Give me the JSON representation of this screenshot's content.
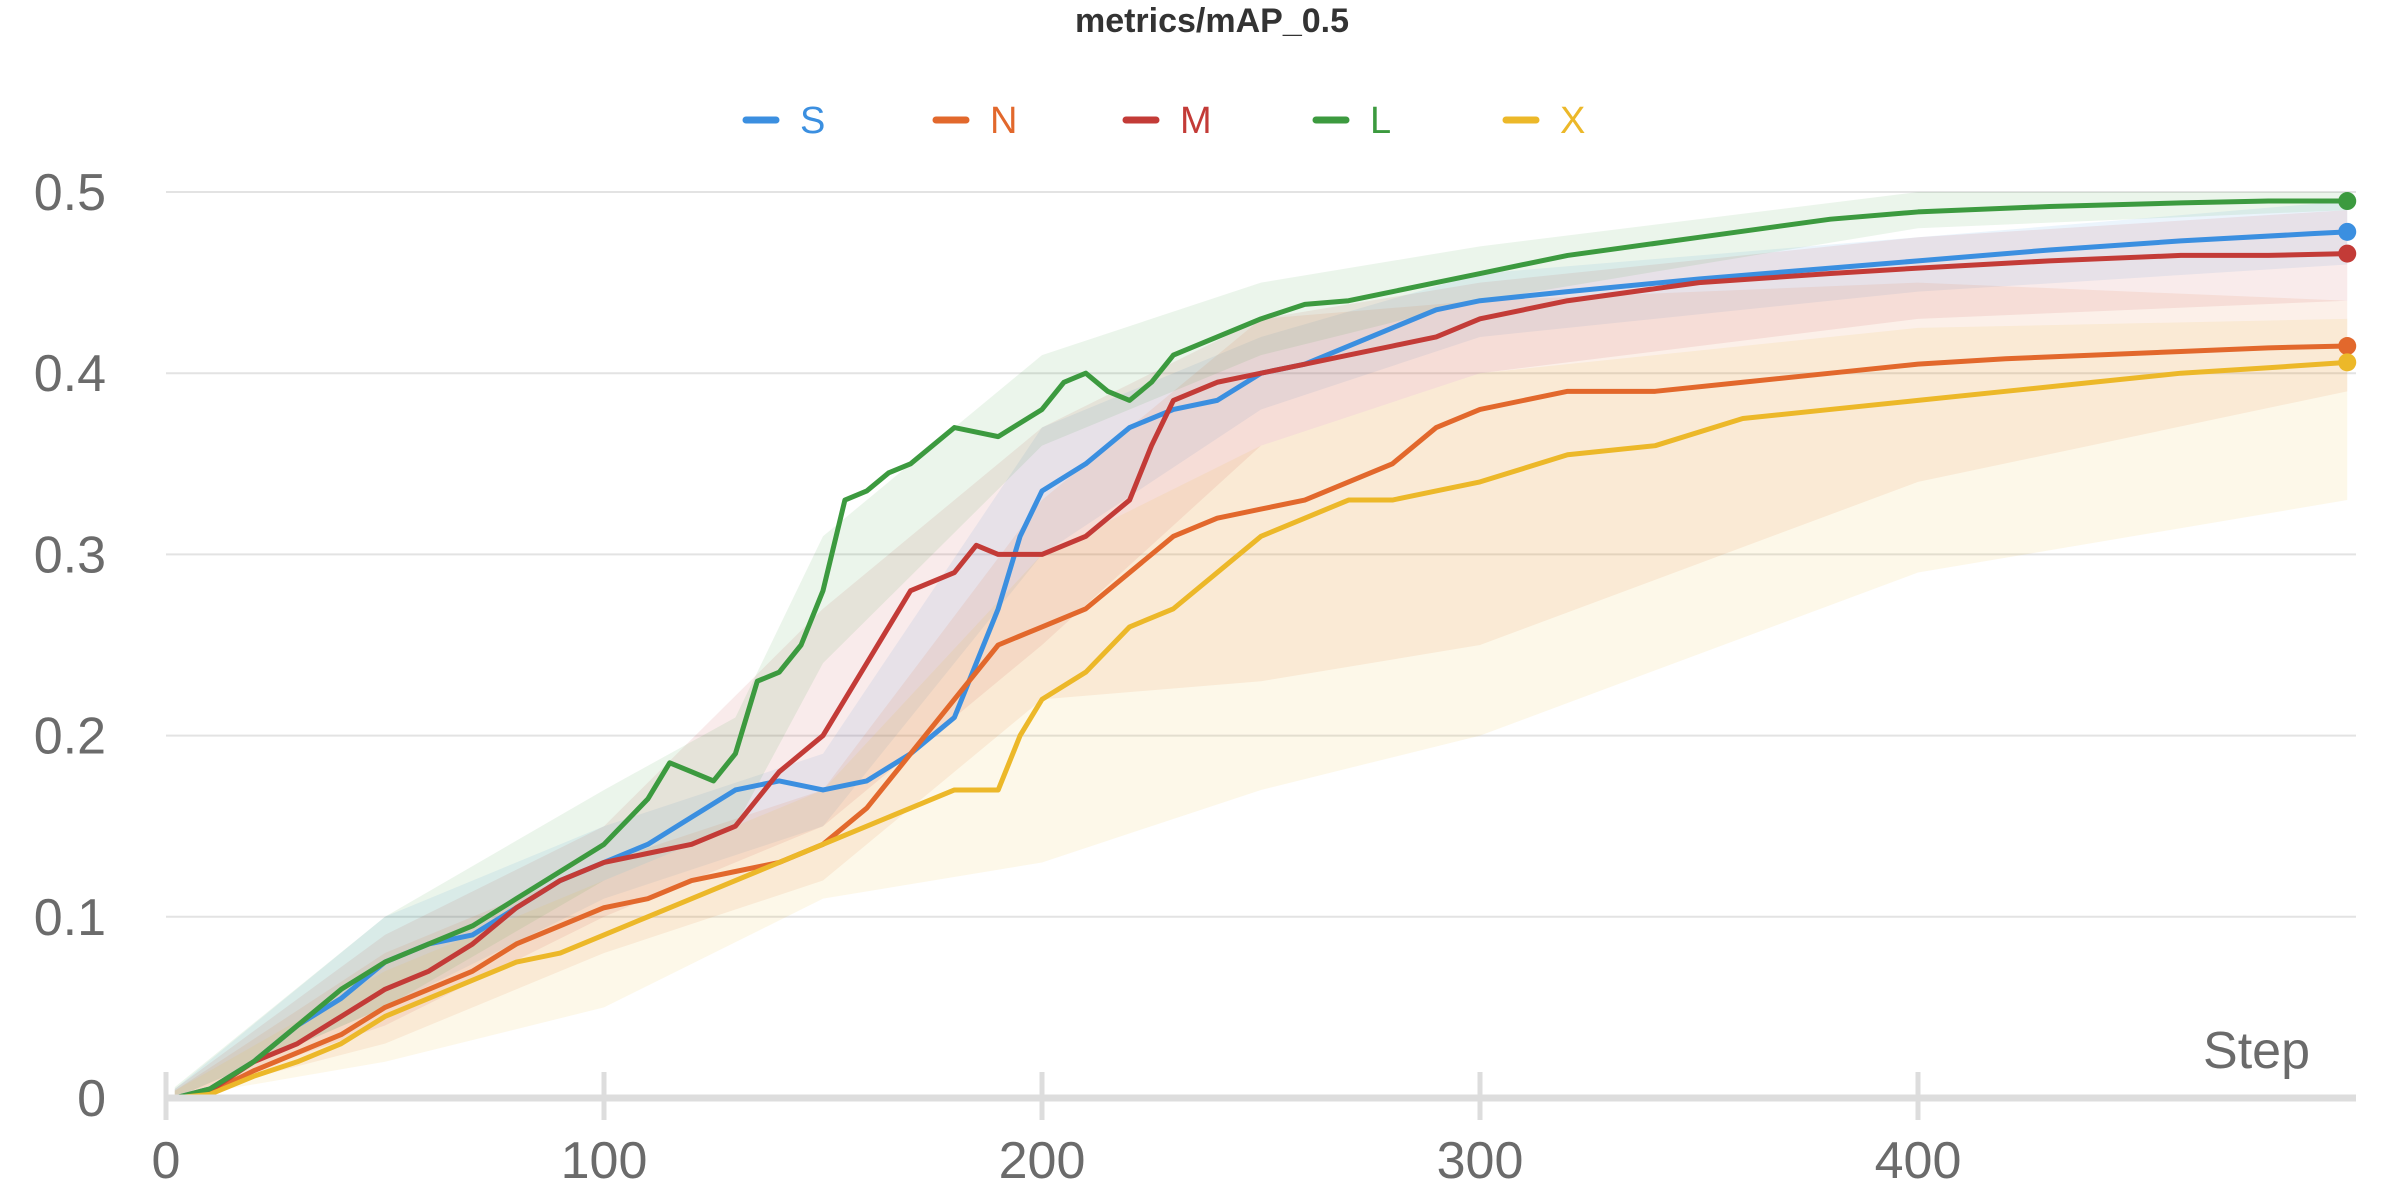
{
  "chart_data": {
    "type": "line",
    "title": "metrics/mAP_0.5",
    "xlabel": "Step",
    "ylabel": "",
    "xlim": [
      0,
      500
    ],
    "ylim": [
      0,
      0.5
    ],
    "x_ticks": [
      "0",
      "100",
      "200",
      "300",
      "400"
    ],
    "y_ticks": [
      "0",
      "0.1",
      "0.2",
      "0.3",
      "0.4",
      "0.5"
    ],
    "grid": true,
    "legend_position": "top-center",
    "series": [
      {
        "name": "S",
        "color": "#3b8fe0",
        "points": [
          [
            2,
            0
          ],
          [
            10,
            0.005
          ],
          [
            20,
            0.02
          ],
          [
            30,
            0.04
          ],
          [
            40,
            0.055
          ],
          [
            50,
            0.075
          ],
          [
            60,
            0.085
          ],
          [
            70,
            0.09
          ],
          [
            80,
            0.105
          ],
          [
            90,
            0.12
          ],
          [
            100,
            0.13
          ],
          [
            110,
            0.14
          ],
          [
            120,
            0.155
          ],
          [
            130,
            0.17
          ],
          [
            140,
            0.175
          ],
          [
            150,
            0.17
          ],
          [
            160,
            0.175
          ],
          [
            170,
            0.19
          ],
          [
            180,
            0.21
          ],
          [
            185,
            0.24
          ],
          [
            190,
            0.27
          ],
          [
            195,
            0.31
          ],
          [
            200,
            0.335
          ],
          [
            210,
            0.35
          ],
          [
            220,
            0.37
          ],
          [
            230,
            0.38
          ],
          [
            240,
            0.385
          ],
          [
            250,
            0.4
          ],
          [
            260,
            0.405
          ],
          [
            270,
            0.415
          ],
          [
            280,
            0.425
          ],
          [
            290,
            0.435
          ],
          [
            300,
            0.44
          ],
          [
            320,
            0.445
          ],
          [
            350,
            0.452
          ],
          [
            380,
            0.458
          ],
          [
            400,
            0.462
          ],
          [
            430,
            0.468
          ],
          [
            460,
            0.473
          ],
          [
            490,
            0.477
          ],
          [
            498,
            0.478
          ]
        ],
        "band": [
          [
            2,
            0,
            0.005
          ],
          [
            50,
            0.05,
            0.1
          ],
          [
            100,
            0.11,
            0.15
          ],
          [
            150,
            0.15,
            0.19
          ],
          [
            200,
            0.3,
            0.37
          ],
          [
            250,
            0.38,
            0.42
          ],
          [
            300,
            0.42,
            0.455
          ],
          [
            400,
            0.445,
            0.475
          ],
          [
            498,
            0.46,
            0.495
          ]
        ]
      },
      {
        "name": "N",
        "color": "#e2682c",
        "points": [
          [
            2,
            0
          ],
          [
            10,
            0.003
          ],
          [
            20,
            0.015
          ],
          [
            30,
            0.025
          ],
          [
            40,
            0.035
          ],
          [
            50,
            0.05
          ],
          [
            60,
            0.06
          ],
          [
            70,
            0.07
          ],
          [
            80,
            0.085
          ],
          [
            90,
            0.095
          ],
          [
            100,
            0.105
          ],
          [
            110,
            0.11
          ],
          [
            120,
            0.12
          ],
          [
            130,
            0.125
          ],
          [
            140,
            0.13
          ],
          [
            150,
            0.14
          ],
          [
            160,
            0.16
          ],
          [
            170,
            0.19
          ],
          [
            180,
            0.22
          ],
          [
            190,
            0.25
          ],
          [
            200,
            0.26
          ],
          [
            210,
            0.27
          ],
          [
            220,
            0.29
          ],
          [
            230,
            0.31
          ],
          [
            240,
            0.32
          ],
          [
            250,
            0.325
          ],
          [
            260,
            0.33
          ],
          [
            270,
            0.34
          ],
          [
            280,
            0.35
          ],
          [
            290,
            0.37
          ],
          [
            300,
            0.38
          ],
          [
            320,
            0.39
          ],
          [
            340,
            0.39
          ],
          [
            360,
            0.395
          ],
          [
            380,
            0.4
          ],
          [
            400,
            0.405
          ],
          [
            420,
            0.408
          ],
          [
            440,
            0.41
          ],
          [
            460,
            0.412
          ],
          [
            480,
            0.414
          ],
          [
            498,
            0.415
          ]
        ],
        "band": [
          [
            2,
            0,
            0.004
          ],
          [
            50,
            0.03,
            0.08
          ],
          [
            100,
            0.08,
            0.13
          ],
          [
            150,
            0.12,
            0.17
          ],
          [
            200,
            0.22,
            0.33
          ],
          [
            250,
            0.23,
            0.43
          ],
          [
            300,
            0.25,
            0.44
          ],
          [
            400,
            0.34,
            0.45
          ],
          [
            498,
            0.39,
            0.44
          ]
        ]
      },
      {
        "name": "M",
        "color": "#c33b37",
        "points": [
          [
            2,
            0
          ],
          [
            10,
            0.004
          ],
          [
            20,
            0.02
          ],
          [
            30,
            0.03
          ],
          [
            40,
            0.045
          ],
          [
            50,
            0.06
          ],
          [
            60,
            0.07
          ],
          [
            70,
            0.085
          ],
          [
            80,
            0.105
          ],
          [
            90,
            0.12
          ],
          [
            100,
            0.13
          ],
          [
            110,
            0.135
          ],
          [
            120,
            0.14
          ],
          [
            130,
            0.15
          ],
          [
            140,
            0.18
          ],
          [
            150,
            0.2
          ],
          [
            160,
            0.24
          ],
          [
            170,
            0.28
          ],
          [
            180,
            0.29
          ],
          [
            185,
            0.305
          ],
          [
            190,
            0.3
          ],
          [
            200,
            0.3
          ],
          [
            210,
            0.31
          ],
          [
            220,
            0.33
          ],
          [
            225,
            0.36
          ],
          [
            230,
            0.385
          ],
          [
            240,
            0.395
          ],
          [
            250,
            0.4
          ],
          [
            260,
            0.405
          ],
          [
            270,
            0.41
          ],
          [
            280,
            0.415
          ],
          [
            290,
            0.42
          ],
          [
            300,
            0.43
          ],
          [
            320,
            0.44
          ],
          [
            350,
            0.45
          ],
          [
            380,
            0.455
          ],
          [
            400,
            0.458
          ],
          [
            430,
            0.462
          ],
          [
            460,
            0.465
          ],
          [
            480,
            0.465
          ],
          [
            498,
            0.466
          ]
        ],
        "band": [
          [
            2,
            0,
            0.005
          ],
          [
            50,
            0.04,
            0.09
          ],
          [
            100,
            0.1,
            0.15
          ],
          [
            150,
            0.15,
            0.27
          ],
          [
            200,
            0.25,
            0.37
          ],
          [
            250,
            0.36,
            0.43
          ],
          [
            300,
            0.4,
            0.45
          ],
          [
            400,
            0.43,
            0.475
          ],
          [
            498,
            0.44,
            0.49
          ]
        ]
      },
      {
        "name": "L",
        "color": "#3c9a3f",
        "points": [
          [
            2,
            0
          ],
          [
            10,
            0.005
          ],
          [
            20,
            0.02
          ],
          [
            30,
            0.04
          ],
          [
            40,
            0.06
          ],
          [
            50,
            0.075
          ],
          [
            60,
            0.085
          ],
          [
            70,
            0.095
          ],
          [
            80,
            0.11
          ],
          [
            90,
            0.125
          ],
          [
            100,
            0.14
          ],
          [
            110,
            0.165
          ],
          [
            115,
            0.185
          ],
          [
            120,
            0.18
          ],
          [
            125,
            0.175
          ],
          [
            130,
            0.19
          ],
          [
            135,
            0.23
          ],
          [
            140,
            0.235
          ],
          [
            145,
            0.25
          ],
          [
            150,
            0.28
          ],
          [
            155,
            0.33
          ],
          [
            160,
            0.335
          ],
          [
            165,
            0.345
          ],
          [
            170,
            0.35
          ],
          [
            180,
            0.37
          ],
          [
            190,
            0.365
          ],
          [
            200,
            0.38
          ],
          [
            205,
            0.395
          ],
          [
            210,
            0.4
          ],
          [
            215,
            0.39
          ],
          [
            220,
            0.385
          ],
          [
            225,
            0.395
          ],
          [
            230,
            0.41
          ],
          [
            240,
            0.42
          ],
          [
            250,
            0.43
          ],
          [
            260,
            0.438
          ],
          [
            270,
            0.44
          ],
          [
            280,
            0.445
          ],
          [
            290,
            0.45
          ],
          [
            300,
            0.455
          ],
          [
            320,
            0.465
          ],
          [
            350,
            0.475
          ],
          [
            380,
            0.485
          ],
          [
            400,
            0.489
          ],
          [
            430,
            0.492
          ],
          [
            460,
            0.494
          ],
          [
            480,
            0.495
          ],
          [
            498,
            0.495
          ]
        ],
        "band": [
          [
            2,
            0,
            0.006
          ],
          [
            50,
            0.05,
            0.1
          ],
          [
            100,
            0.12,
            0.17
          ],
          [
            130,
            0.15,
            0.21
          ],
          [
            150,
            0.24,
            0.31
          ],
          [
            200,
            0.36,
            0.41
          ],
          [
            250,
            0.41,
            0.45
          ],
          [
            300,
            0.44,
            0.47
          ],
          [
            400,
            0.48,
            0.5
          ],
          [
            498,
            0.49,
            0.5
          ]
        ]
      },
      {
        "name": "X",
        "color": "#ecb829",
        "points": [
          [
            2,
            0
          ],
          [
            10,
            0.002
          ],
          [
            20,
            0.012
          ],
          [
            30,
            0.02
          ],
          [
            40,
            0.03
          ],
          [
            50,
            0.045
          ],
          [
            60,
            0.055
          ],
          [
            70,
            0.065
          ],
          [
            80,
            0.075
          ],
          [
            90,
            0.08
          ],
          [
            100,
            0.09
          ],
          [
            110,
            0.1
          ],
          [
            120,
            0.11
          ],
          [
            130,
            0.12
          ],
          [
            140,
            0.13
          ],
          [
            150,
            0.14
          ],
          [
            160,
            0.15
          ],
          [
            170,
            0.16
          ],
          [
            180,
            0.17
          ],
          [
            190,
            0.17
          ],
          [
            195,
            0.2
          ],
          [
            200,
            0.22
          ],
          [
            210,
            0.235
          ],
          [
            220,
            0.26
          ],
          [
            230,
            0.27
          ],
          [
            240,
            0.29
          ],
          [
            250,
            0.31
          ],
          [
            260,
            0.32
          ],
          [
            270,
            0.33
          ],
          [
            280,
            0.33
          ],
          [
            290,
            0.335
          ],
          [
            300,
            0.34
          ],
          [
            320,
            0.355
          ],
          [
            340,
            0.36
          ],
          [
            360,
            0.375
          ],
          [
            380,
            0.38
          ],
          [
            400,
            0.385
          ],
          [
            420,
            0.39
          ],
          [
            440,
            0.395
          ],
          [
            460,
            0.4
          ],
          [
            480,
            0.403
          ],
          [
            498,
            0.406
          ]
        ],
        "band": [
          [
            2,
            0,
            0.004
          ],
          [
            50,
            0.02,
            0.07
          ],
          [
            100,
            0.05,
            0.12
          ],
          [
            150,
            0.11,
            0.17
          ],
          [
            200,
            0.13,
            0.3
          ],
          [
            250,
            0.17,
            0.36
          ],
          [
            300,
            0.2,
            0.4
          ],
          [
            400,
            0.29,
            0.425
          ],
          [
            498,
            0.33,
            0.43
          ]
        ]
      }
    ]
  }
}
